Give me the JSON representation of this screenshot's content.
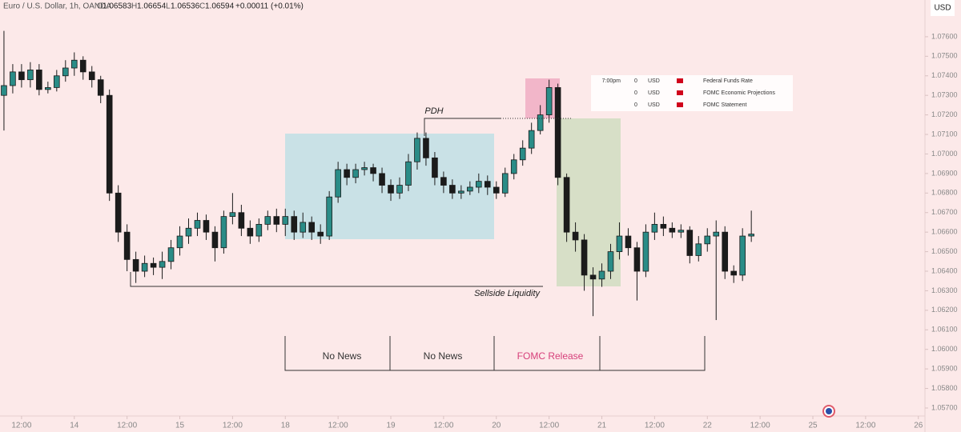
{
  "header": {
    "symbol": "Euro / U.S. Dollar, 1h, OANDA",
    "ohlc": [
      {
        "key": "O",
        "value": "1.06583"
      },
      {
        "key": "H",
        "value": "1.06654"
      },
      {
        "key": "L",
        "value": "1.06536"
      },
      {
        "key": "C",
        "value": "1.06594"
      }
    ],
    "change": "+0.00011 (+0.01%)",
    "currency": "USD"
  },
  "calendar": [
    [
      "7:00pm",
      "0",
      "USD",
      "Federal Funds Rate"
    ],
    [
      "0",
      "USD",
      "FOMC Economic Projections"
    ],
    [
      "0",
      "USD",
      "FOMC Statement"
    ]
  ],
  "chart_data": {
    "type": "candlestick",
    "up_color": "#2a8c87",
    "down_color": "#1b1b1b",
    "annotations": [
      "PDH",
      "Sellside Liquidity",
      "No News",
      "No News",
      "FOMC Release"
    ],
    "xlim": [
      -0.9,
      209.5
    ],
    "ylim": [
      1.05659,
      1.07788
    ],
    "xticks": [
      {
        "value": 4,
        "label": "12:00"
      },
      {
        "value": 16,
        "label": "14"
      },
      {
        "value": 28,
        "label": "12:00"
      },
      {
        "value": 40,
        "label": "15"
      },
      {
        "value": 52,
        "label": "12:00"
      },
      {
        "value": 64,
        "label": "18"
      },
      {
        "value": 76,
        "label": "12:00"
      },
      {
        "value": 88,
        "label": "19"
      },
      {
        "value": 100,
        "label": "12:00"
      },
      {
        "value": 112,
        "label": "20"
      },
      {
        "value": 124,
        "label": "12:00"
      },
      {
        "value": 136,
        "label": "21"
      },
      {
        "value": 148,
        "label": "12:00"
      },
      {
        "value": 160,
        "label": "22"
      },
      {
        "value": 172,
        "label": "12:00"
      },
      {
        "value": 184,
        "label": "25"
      },
      {
        "value": 196,
        "label": "12:00"
      },
      {
        "value": 208,
        "label": "26"
      }
    ],
    "yticks": [
      {
        "value": 1.057,
        "label": "1.05700"
      },
      {
        "value": 1.058,
        "label": "1.05800"
      },
      {
        "value": 1.059,
        "label": "1.05900"
      },
      {
        "value": 1.06,
        "label": "1.06000"
      },
      {
        "value": 1.061,
        "label": "1.06100"
      },
      {
        "value": 1.062,
        "label": "1.06200"
      },
      {
        "value": 1.063,
        "label": "1.06300"
      },
      {
        "value": 1.064,
        "label": "1.06400"
      },
      {
        "value": 1.065,
        "label": "1.06500"
      },
      {
        "value": 1.066,
        "label": "1.06600"
      },
      {
        "value": 1.067,
        "label": "1.06700"
      },
      {
        "value": 1.068,
        "label": "1.06800"
      },
      {
        "value": 1.069,
        "label": "1.06900"
      },
      {
        "value": 1.07,
        "label": "1.07000"
      },
      {
        "value": 1.071,
        "label": "1.07100"
      },
      {
        "value": 1.072,
        "label": "1.07200"
      },
      {
        "value": 1.073,
        "label": "1.07300"
      },
      {
        "value": 1.074,
        "label": "1.07400"
      },
      {
        "value": 1.075,
        "label": "1.07500"
      },
      {
        "value": 1.076,
        "label": "1.07600"
      }
    ],
    "x": [
      0,
      2,
      4,
      6,
      8,
      10,
      12,
      14,
      16,
      18,
      20,
      22,
      24,
      26,
      28,
      30,
      32,
      34,
      36,
      38,
      40,
      42,
      44,
      46,
      48,
      50,
      52,
      54,
      56,
      58,
      60,
      62,
      64,
      66,
      68,
      70,
      72,
      74,
      76,
      78,
      80,
      82,
      84,
      86,
      88,
      90,
      92,
      94,
      96,
      98,
      100,
      102,
      104,
      106,
      108,
      110,
      112,
      114,
      116,
      118,
      120,
      122,
      124,
      126,
      128,
      130,
      132,
      134,
      136,
      138,
      140,
      142,
      144,
      146,
      148,
      150,
      152,
      154,
      156,
      158,
      160,
      162,
      164,
      166,
      168,
      170
    ],
    "open": [
      1.073,
      1.0735,
      1.0742,
      1.0738,
      1.0743,
      1.0733,
      1.0734,
      1.074,
      1.0744,
      1.0748,
      1.0742,
      1.0738,
      1.073,
      1.068,
      1.066,
      1.0646,
      1.064,
      1.0644,
      1.0642,
      1.0645,
      1.0652,
      1.0658,
      1.0662,
      1.0666,
      1.066,
      1.0652,
      1.0668,
      1.067,
      1.0662,
      1.0658,
      1.0664,
      1.0668,
      1.0664,
      1.0668,
      1.066,
      1.0665,
      1.066,
      1.0658,
      1.0678,
      1.0692,
      1.0688,
      1.0692,
      1.0693,
      1.069,
      1.0684,
      1.068,
      1.0684,
      1.0696,
      1.0708,
      1.0698,
      1.0688,
      1.0684,
      1.068,
      1.0681,
      1.0683,
      1.0686,
      1.0683,
      1.068,
      1.069,
      1.0697,
      1.0703,
      1.0712,
      1.072,
      1.0734,
      1.0688,
      1.066,
      1.0656,
      1.0638,
      1.0636,
      1.064,
      1.065,
      1.0658,
      1.0652,
      1.064,
      1.066,
      1.0664,
      1.0662,
      1.066,
      1.0661,
      1.0648,
      1.0654,
      1.0658,
      1.066,
      1.064,
      1.0638,
      1.0658
    ],
    "high": [
      1.0763,
      1.0746,
      1.0746,
      1.0747,
      1.0746,
      1.0737,
      1.0743,
      1.0748,
      1.0752,
      1.075,
      1.0745,
      1.074,
      1.0733,
      1.0684,
      1.0664,
      1.065,
      1.0648,
      1.0647,
      1.065,
      1.0656,
      1.0663,
      1.0667,
      1.067,
      1.0669,
      1.0663,
      1.0671,
      1.068,
      1.0674,
      1.0666,
      1.0667,
      1.0671,
      1.0672,
      1.0672,
      1.0671,
      1.067,
      1.0668,
      1.0664,
      1.0681,
      1.0696,
      1.0695,
      1.0695,
      1.0696,
      1.0695,
      1.0693,
      1.0687,
      1.0688,
      1.07,
      1.0711,
      1.0711,
      1.0701,
      1.0691,
      1.0687,
      1.0684,
      1.0686,
      1.069,
      1.0689,
      1.0686,
      1.0693,
      1.07,
      1.0707,
      1.0716,
      1.0725,
      1.0738,
      1.0736,
      1.069,
      1.0665,
      1.0659,
      1.0642,
      1.0644,
      1.0654,
      1.0665,
      1.0662,
      1.0655,
      1.0664,
      1.067,
      1.0668,
      1.0665,
      1.0664,
      1.0663,
      1.0658,
      1.0662,
      1.0666,
      1.0663,
      1.0643,
      1.0662,
      1.0671
    ],
    "low": [
      1.0712,
      1.0731,
      1.0734,
      1.0734,
      1.073,
      1.0731,
      1.0732,
      1.0737,
      1.074,
      1.0738,
      1.0734,
      1.0726,
      1.0676,
      1.0655,
      1.064,
      1.0634,
      1.0637,
      1.0638,
      1.0636,
      1.0641,
      1.0648,
      1.0654,
      1.0658,
      1.0656,
      1.0645,
      1.0649,
      1.0664,
      1.0658,
      1.0654,
      1.0655,
      1.0661,
      1.066,
      1.0658,
      1.0656,
      1.0657,
      1.0656,
      1.0654,
      1.0656,
      1.0675,
      1.0684,
      1.0685,
      1.0689,
      1.0686,
      1.068,
      1.0676,
      1.0677,
      1.0681,
      1.0692,
      1.0694,
      1.0684,
      1.068,
      1.0677,
      1.0677,
      1.0679,
      1.068,
      1.0679,
      1.0677,
      1.0678,
      1.0687,
      1.0694,
      1.07,
      1.071,
      1.0716,
      1.0684,
      1.0655,
      1.065,
      1.063,
      1.0617,
      1.0632,
      1.0636,
      1.0646,
      1.0648,
      1.0625,
      1.0637,
      1.0656,
      1.0658,
      1.0657,
      1.0657,
      1.0644,
      1.0645,
      1.065,
      1.0615,
      1.0636,
      1.0634,
      1.0635,
      1.0655
    ],
    "close": [
      1.0735,
      1.0742,
      1.0738,
      1.0743,
      1.0733,
      1.0734,
      1.074,
      1.0744,
      1.0748,
      1.0742,
      1.0738,
      1.073,
      1.068,
      1.066,
      1.0646,
      1.064,
      1.0644,
      1.0642,
      1.0645,
      1.0652,
      1.0658,
      1.0662,
      1.0666,
      1.066,
      1.0652,
      1.0668,
      1.067,
      1.0662,
      1.0658,
      1.0664,
      1.0668,
      1.0664,
      1.0668,
      1.066,
      1.0665,
      1.066,
      1.0658,
      1.0678,
      1.0692,
      1.0688,
      1.0692,
      1.0693,
      1.069,
      1.0684,
      1.068,
      1.0684,
      1.0696,
      1.0708,
      1.0698,
      1.0688,
      1.0684,
      1.068,
      1.0681,
      1.0683,
      1.0686,
      1.0683,
      1.068,
      1.069,
      1.0697,
      1.0703,
      1.0712,
      1.072,
      1.0734,
      1.0688,
      1.066,
      1.0656,
      1.0638,
      1.0636,
      1.064,
      1.065,
      1.0658,
      1.0652,
      1.064,
      1.066,
      1.0664,
      1.0662,
      1.066,
      1.0661,
      1.0648,
      1.0654,
      1.0658,
      1.066,
      1.064,
      1.0638,
      1.0658,
      1.0659
    ]
  }
}
